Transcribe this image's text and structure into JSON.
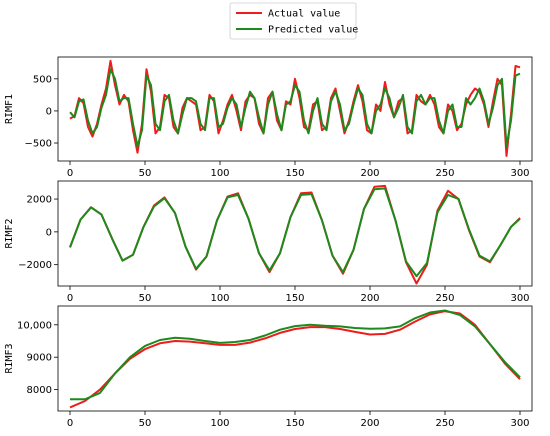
{
  "legend": {
    "placement": "top-center",
    "entries": [
      {
        "label": "Actual value",
        "color": "#ee1c1c"
      },
      {
        "label": "Predicted value",
        "color": "#1c8a1c"
      }
    ]
  },
  "chart_data": [
    {
      "type": "line",
      "ylabel": "RIMF1",
      "xlim": [
        -8,
        308
      ],
      "ylim": [
        -780,
        840
      ],
      "xticks": [
        0,
        50,
        100,
        150,
        200,
        250,
        300
      ],
      "yticks": [
        -500,
        0,
        500
      ],
      "ytick_labels": [
        "−500",
        "0",
        "500"
      ],
      "grid": false,
      "series": [
        {
          "name": "Actual value",
          "color": "#ee1c1c",
          "x": [
            0,
            3,
            6,
            9,
            12,
            15,
            18,
            21,
            24,
            27,
            30,
            33,
            36,
            39,
            42,
            45,
            48,
            51,
            54,
            57,
            60,
            63,
            66,
            69,
            72,
            75,
            78,
            81,
            84,
            87,
            90,
            93,
            96,
            99,
            102,
            105,
            108,
            111,
            114,
            117,
            120,
            123,
            126,
            129,
            132,
            135,
            138,
            141,
            144,
            147,
            150,
            153,
            156,
            159,
            162,
            165,
            168,
            171,
            174,
            177,
            180,
            183,
            186,
            189,
            192,
            195,
            198,
            201,
            204,
            207,
            210,
            213,
            216,
            219,
            222,
            225,
            228,
            231,
            234,
            237,
            240,
            243,
            246,
            249,
            252,
            255,
            258,
            261,
            264,
            267,
            270,
            273,
            276,
            279,
            282,
            285,
            288,
            291,
            294,
            297,
            300
          ],
          "y": [
            -120,
            -80,
            200,
            120,
            -250,
            -400,
            -200,
            100,
            350,
            780,
            400,
            100,
            250,
            150,
            -300,
            -650,
            -200,
            650,
            300,
            -350,
            -250,
            250,
            200,
            -250,
            -350,
            50,
            200,
            150,
            100,
            -300,
            -250,
            250,
            150,
            -350,
            -150,
            100,
            250,
            0,
            -300,
            150,
            250,
            200,
            -200,
            -350,
            200,
            300,
            -150,
            -300,
            150,
            100,
            500,
            200,
            -250,
            -300,
            100,
            150,
            -300,
            -250,
            200,
            350,
            0,
            -350,
            -150,
            150,
            400,
            150,
            -300,
            -350,
            100,
            0,
            450,
            100,
            -100,
            150,
            200,
            -350,
            -300,
            250,
            150,
            100,
            250,
            100,
            -250,
            -350,
            100,
            0,
            -300,
            -200,
            100,
            250,
            350,
            300,
            100,
            -250,
            150,
            500,
            400,
            -700,
            -50,
            700,
            680
          ]
        },
        {
          "name": "Predicted value",
          "color": "#1c8a1c",
          "x": [
            0,
            3,
            6,
            9,
            12,
            15,
            18,
            21,
            24,
            27,
            30,
            33,
            36,
            39,
            42,
            45,
            48,
            51,
            54,
            57,
            60,
            63,
            66,
            69,
            72,
            75,
            78,
            81,
            84,
            87,
            90,
            93,
            96,
            99,
            102,
            105,
            108,
            111,
            114,
            117,
            120,
            123,
            126,
            129,
            132,
            135,
            138,
            141,
            144,
            147,
            150,
            153,
            156,
            159,
            162,
            165,
            168,
            171,
            174,
            177,
            180,
            183,
            186,
            189,
            192,
            195,
            198,
            201,
            204,
            207,
            210,
            213,
            216,
            219,
            222,
            225,
            228,
            231,
            234,
            237,
            240,
            243,
            246,
            249,
            252,
            255,
            258,
            261,
            264,
            267,
            270,
            273,
            276,
            279,
            282,
            285,
            288,
            291,
            294,
            297,
            300
          ],
          "y": [
            -20,
            -100,
            150,
            180,
            -150,
            -350,
            -250,
            50,
            250,
            650,
            500,
            150,
            200,
            200,
            -200,
            -550,
            -300,
            550,
            400,
            -200,
            -300,
            150,
            250,
            -150,
            -350,
            -50,
            200,
            200,
            150,
            -200,
            -300,
            200,
            200,
            -250,
            -200,
            50,
            200,
            100,
            -250,
            50,
            300,
            200,
            -100,
            -350,
            100,
            300,
            -50,
            -300,
            100,
            150,
            400,
            300,
            -150,
            -350,
            0,
            200,
            -200,
            -300,
            150,
            300,
            100,
            -300,
            -200,
            100,
            350,
            250,
            -200,
            -350,
            0,
            100,
            350,
            200,
            -100,
            50,
            250,
            -250,
            -350,
            150,
            250,
            100,
            200,
            200,
            -150,
            -350,
            0,
            100,
            -250,
            -250,
            200,
            100,
            200,
            350,
            150,
            -200,
            50,
            400,
            500,
            -550,
            -150,
            550,
            580
          ]
        }
      ]
    },
    {
      "type": "line",
      "ylabel": "RIMF2",
      "xlim": [
        -8,
        308
      ],
      "ylim": [
        -3300,
        3100
      ],
      "xticks": [
        0,
        50,
        100,
        150,
        200,
        250,
        300
      ],
      "yticks": [
        -2000,
        0,
        2000
      ],
      "ytick_labels": [
        "−2000",
        "0",
        "2000"
      ],
      "grid": false,
      "series": [
        {
          "name": "Actual value",
          "color": "#ee1c1c",
          "x": [
            0,
            7,
            14,
            21,
            28,
            35,
            42,
            49,
            56,
            63,
            70,
            77,
            84,
            91,
            98,
            105,
            112,
            119,
            126,
            133,
            140,
            147,
            154,
            161,
            168,
            175,
            182,
            189,
            196,
            203,
            210,
            217,
            224,
            231,
            238,
            245,
            252,
            259,
            266,
            273,
            280,
            287,
            294,
            300
          ],
          "y": [
            -950,
            750,
            1500,
            1050,
            -400,
            -1750,
            -1400,
            300,
            1600,
            2100,
            1150,
            -900,
            -2300,
            -1500,
            700,
            2150,
            2350,
            800,
            -1300,
            -2450,
            -1300,
            900,
            2350,
            2400,
            700,
            -1450,
            -2550,
            -1100,
            1400,
            2750,
            2800,
            700,
            -1850,
            -3150,
            -2000,
            1300,
            2500,
            2000,
            100,
            -1500,
            -1850,
            -800,
            300,
            850
          ]
        },
        {
          "name": "Predicted value",
          "color": "#1c8a1c",
          "x": [
            0,
            7,
            14,
            21,
            28,
            35,
            42,
            49,
            56,
            63,
            70,
            77,
            84,
            91,
            98,
            105,
            112,
            119,
            126,
            133,
            140,
            147,
            154,
            161,
            168,
            175,
            182,
            189,
            196,
            203,
            210,
            217,
            224,
            231,
            238,
            245,
            252,
            259,
            266,
            273,
            280,
            287,
            294,
            300
          ],
          "y": [
            -950,
            750,
            1500,
            1050,
            -400,
            -1750,
            -1400,
            300,
            1550,
            2050,
            1150,
            -900,
            -2250,
            -1500,
            700,
            2100,
            2250,
            800,
            -1300,
            -2350,
            -1300,
            900,
            2250,
            2300,
            700,
            -1450,
            -2450,
            -1100,
            1400,
            2600,
            2650,
            700,
            -1800,
            -2700,
            -1900,
            1200,
            2250,
            2000,
            150,
            -1450,
            -1800,
            -800,
            300,
            800
          ]
        }
      ]
    },
    {
      "type": "line",
      "ylabel": "RIMF3",
      "xlim": [
        -8,
        308
      ],
      "ylim": [
        7340,
        10580
      ],
      "xticks": [
        0,
        50,
        100,
        150,
        200,
        250,
        300
      ],
      "yticks": [
        8000,
        9000,
        10000
      ],
      "ytick_labels": [
        "8000",
        "9000",
        "10,000"
      ],
      "grid": false,
      "series": [
        {
          "name": "Actual value",
          "color": "#ee1c1c",
          "x": [
            0,
            10,
            20,
            30,
            40,
            50,
            60,
            70,
            80,
            90,
            100,
            110,
            120,
            130,
            140,
            150,
            160,
            170,
            180,
            190,
            200,
            210,
            220,
            230,
            240,
            250,
            260,
            270,
            280,
            290,
            300
          ],
          "y": [
            7450,
            7650,
            8000,
            8500,
            8950,
            9250,
            9430,
            9500,
            9480,
            9430,
            9380,
            9380,
            9450,
            9580,
            9750,
            9870,
            9930,
            9930,
            9870,
            9780,
            9700,
            9720,
            9850,
            10100,
            10320,
            10420,
            10350,
            10000,
            9400,
            8800,
            8320
          ]
        },
        {
          "name": "Predicted value",
          "color": "#1c8a1c",
          "x": [
            0,
            10,
            20,
            30,
            40,
            50,
            60,
            70,
            80,
            90,
            100,
            110,
            120,
            130,
            140,
            150,
            160,
            170,
            180,
            190,
            200,
            210,
            220,
            230,
            240,
            250,
            260,
            270,
            280,
            290,
            300
          ],
          "y": [
            7700,
            7700,
            7900,
            8500,
            9000,
            9350,
            9530,
            9600,
            9570,
            9500,
            9440,
            9470,
            9530,
            9670,
            9850,
            9960,
            10000,
            9970,
            9950,
            9900,
            9880,
            9890,
            9950,
            10200,
            10380,
            10440,
            10300,
            9950,
            9400,
            8850,
            8380
          ]
        }
      ]
    }
  ]
}
